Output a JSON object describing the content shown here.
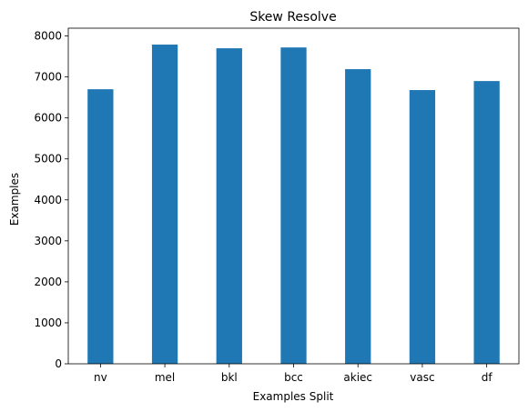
{
  "chart_data": {
    "type": "bar",
    "title": "Skew Resolve",
    "xlabel": "Examples Split",
    "ylabel": "Examples",
    "categories": [
      "nv",
      "mel",
      "bkl",
      "bcc",
      "akiec",
      "vasc",
      "df"
    ],
    "values": [
      6700,
      7790,
      7700,
      7720,
      7190,
      6680,
      6900
    ],
    "ylim": [
      0,
      8190
    ],
    "yticks": [
      0,
      1000,
      2000,
      3000,
      4000,
      5000,
      6000,
      7000,
      8000
    ],
    "grid": false,
    "colors": {
      "bar": "#1f77b4",
      "axes": "#000000"
    }
  }
}
